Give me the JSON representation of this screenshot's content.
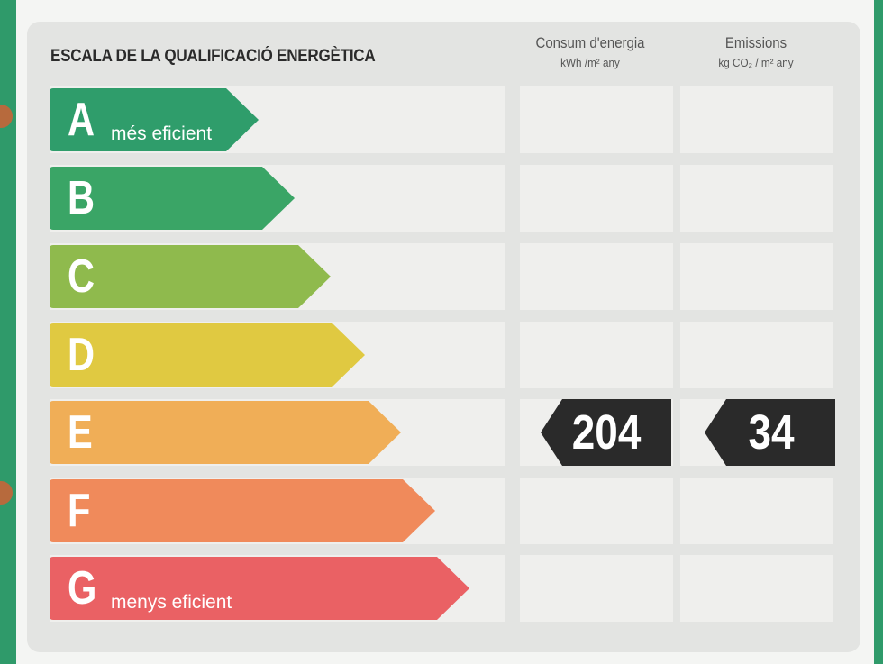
{
  "title": "ESCALA DE LA QUALIFICACIÓ ENERGÈTICA",
  "columns": {
    "consumption": {
      "title": "Consum d'energia",
      "unit": "kWh /m² any"
    },
    "emissions": {
      "title": "Emissions",
      "unit": "kg CO₂ / m² any"
    }
  },
  "ratings": [
    {
      "letter": "A",
      "label": "més eficient",
      "color": "#2f9d6b"
    },
    {
      "letter": "B",
      "label": "",
      "color": "#3aa566"
    },
    {
      "letter": "C",
      "label": "",
      "color": "#8fba4d"
    },
    {
      "letter": "D",
      "label": "",
      "color": "#e0c941"
    },
    {
      "letter": "E",
      "label": "",
      "color": "#f0ae57"
    },
    {
      "letter": "F",
      "label": "",
      "color": "#f08a5b"
    },
    {
      "letter": "G",
      "label": "menys eficient",
      "color": "#ea6164"
    }
  ],
  "result": {
    "rating": "E",
    "consumption_value": "204",
    "emissions_value": "34",
    "marker_color": "#2a2a2a"
  }
}
